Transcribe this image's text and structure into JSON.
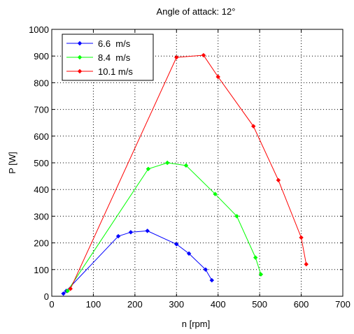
{
  "chart_data": {
    "type": "line",
    "title": "Angle of attack: 12°",
    "xlabel": "n [rpm]",
    "ylabel": "P [W]",
    "xlim": [
      0,
      700
    ],
    "ylim": [
      0,
      1000
    ],
    "xticks": [
      0,
      100,
      200,
      300,
      400,
      500,
      600,
      700
    ],
    "yticks": [
      0,
      100,
      200,
      300,
      400,
      500,
      600,
      700,
      800,
      900,
      1000
    ],
    "grid": true,
    "legend_position": "top-left",
    "series": [
      {
        "name": "6.6  m/s",
        "color": "#0000ff",
        "marker": "diamond",
        "x": [
          28,
          35,
          160,
          190,
          230,
          300,
          330,
          370,
          385
        ],
        "y": [
          10,
          20,
          225,
          240,
          245,
          195,
          160,
          100,
          60
        ]
      },
      {
        "name": "8.4  m/s",
        "color": "#00ff00",
        "marker": "diamond",
        "x": [
          38,
          232,
          278,
          323,
          393,
          445,
          490,
          503
        ],
        "y": [
          20,
          477,
          500,
          490,
          383,
          300,
          145,
          82
        ]
      },
      {
        "name": "10.1 m/s",
        "color": "#ff0000",
        "marker": "diamond",
        "x": [
          45,
          300,
          365,
          400,
          485,
          545,
          600,
          612
        ],
        "y": [
          28,
          895,
          903,
          822,
          637,
          435,
          220,
          120
        ]
      }
    ]
  }
}
